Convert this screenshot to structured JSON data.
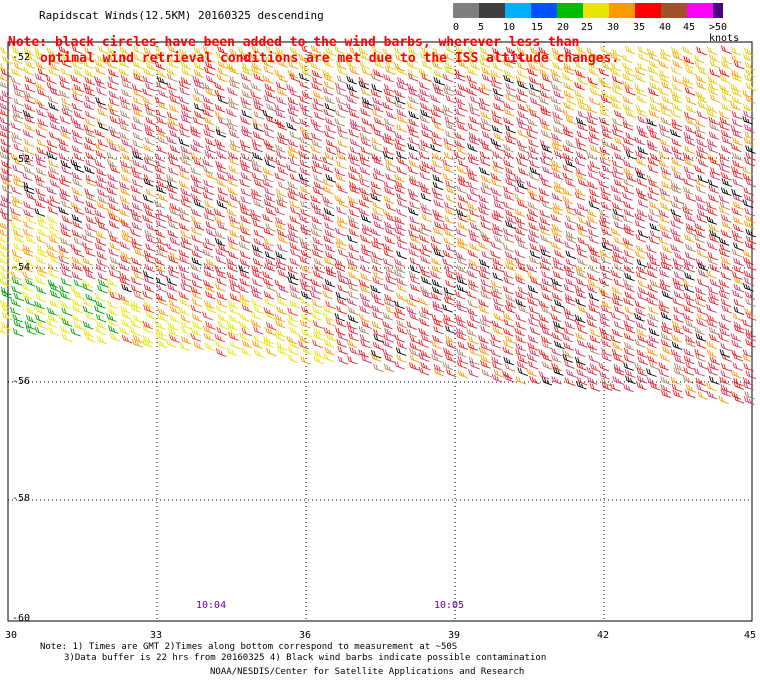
{
  "title": "Rapidscat Winds(12.5KM) 20160325 descending",
  "note": {
    "line1": "Note: black circles have been added to the wind barbs, wherever less than",
    "line2": "optimal wind retrieval conditions are met due to the ISS altitude changes."
  },
  "legend": {
    "labels": [
      "0",
      "5",
      "10",
      "15",
      "20",
      "25",
      "30",
      "35",
      "40",
      "45",
      ">50 knots"
    ],
    "colors": [
      "#7f7f7f",
      "#3f3f3f",
      "#00b0ff",
      "#0050ff",
      "#00bb00",
      "#e6e600",
      "#ff9900",
      "#ff0000",
      "#a0522d",
      "#ff00ff",
      "#4b0082"
    ]
  },
  "axes": {
    "lat_ticks": [
      "-52",
      "-52",
      "-54",
      "-56",
      "-58",
      "-60"
    ],
    "lon_ticks": [
      "30",
      "33",
      "36",
      "39",
      "42",
      "45"
    ]
  },
  "times": [
    "10:04",
    "10:05"
  ],
  "footer": {
    "line1": "Note: 1) Times are GMT 2)Times along bottom correspond to measurement at ~50S",
    "line2": "3)Data buffer is 22 hrs from 20160325 4) Black wind barbs indicate possible contamination",
    "line3": "NOAA/NESDIS/Center for Satellite Applications and Research"
  }
}
